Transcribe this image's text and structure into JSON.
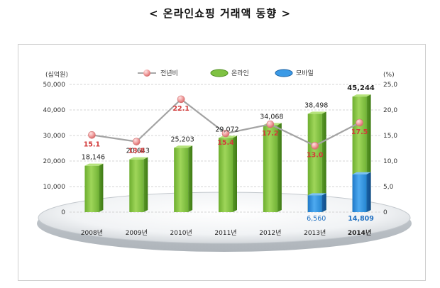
{
  "page": {
    "title": "< 온라인쇼핑 거래액 동향 >"
  },
  "chart_data": {
    "type": "bar",
    "categories": [
      "2008년",
      "2009년",
      "2010년",
      "2011년",
      "2012년",
      "2013년",
      "2014년"
    ],
    "series": [
      {
        "name": "온라인",
        "kind": "bar",
        "axis": "left",
        "color": "#7fc242",
        "values": [
          18146,
          20643,
          25203,
          29072,
          34068,
          38498,
          45244
        ],
        "labels": [
          "18,146",
          "20,643",
          "25,203",
          "29,072",
          "34,068",
          "38,498",
          "45,244"
        ]
      },
      {
        "name": "모바일",
        "kind": "bar",
        "axis": "left",
        "color": "#2e8fd6",
        "values": [
          null,
          null,
          null,
          null,
          null,
          6560,
          14809
        ],
        "labels": [
          "",
          "",
          "",
          "",
          "",
          "6,560",
          "14,809"
        ]
      },
      {
        "name": "전년비",
        "kind": "line",
        "axis": "right",
        "color": "#e46b6b",
        "values": [
          15.1,
          13.8,
          22.1,
          15.4,
          17.2,
          13.0,
          17.5
        ],
        "labels": [
          "15.1",
          "13.8",
          "22.1",
          "15.4",
          "17.2",
          "13.0",
          "17.5"
        ]
      }
    ],
    "yunit_left": "(십억원)",
    "yunit_right": "(%)",
    "ylim_left": [
      0,
      50000
    ],
    "ylim_right": [
      0,
      25
    ],
    "yticks_left": [
      "0",
      "10,000",
      "20,000",
      "30,000",
      "40,000",
      "50,000"
    ],
    "yticks_right": [
      "0",
      "5,0",
      "10,0",
      "15,0",
      "20,0",
      "25,0"
    ],
    "grid": true,
    "legend": [
      {
        "label": "전년비",
        "marker": "pink-ball-icon"
      },
      {
        "label": "온라인",
        "marker": "green-disc-icon"
      },
      {
        "label": "모바일",
        "marker": "blue-disc-icon"
      }
    ],
    "legend_position": "top-center"
  }
}
